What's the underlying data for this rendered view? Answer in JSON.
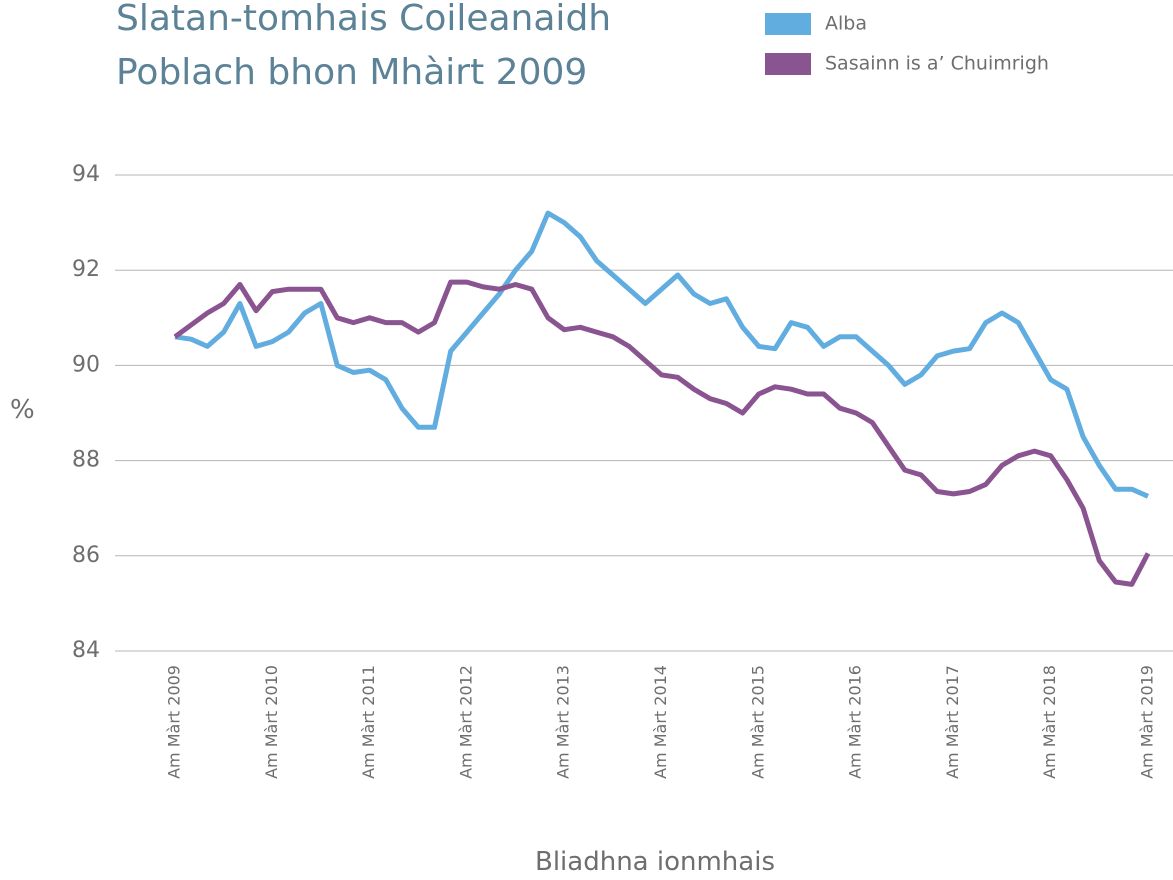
{
  "chart_data": {
    "type": "line",
    "title": [
      "Slatan-tomhais Coileanaidh",
      "Poblach bhon Mhàirt 2009"
    ],
    "y_label": "%",
    "x_label": "Bliadhna ionmhais",
    "categories": [
      "Am Màrt 2009",
      null,
      null,
      null,
      null,
      null,
      "Am Màrt 2010",
      null,
      null,
      null,
      null,
      null,
      "Am Màrt 2011",
      null,
      null,
      null,
      null,
      null,
      "Am Màrt 2012",
      null,
      null,
      null,
      null,
      null,
      "Am Màrt 2013",
      null,
      null,
      null,
      null,
      null,
      "Am Màrt 2014",
      null,
      null,
      null,
      null,
      null,
      "Am Màrt 2015",
      null,
      null,
      null,
      null,
      null,
      "Am Màrt 2016",
      null,
      null,
      null,
      null,
      null,
      "Am Màrt 2017",
      null,
      null,
      null,
      null,
      null,
      "Am Màrt 2018",
      null,
      null,
      null,
      null,
      null,
      "Am Màrt 2019"
    ],
    "series": [
      {
        "name": "Alba",
        "color": "#62ade0",
        "values": [
          90.6,
          90.55,
          90.4,
          90.7,
          91.3,
          90.4,
          90.5,
          90.7,
          91.1,
          91.3,
          90.0,
          89.85,
          89.9,
          89.7,
          89.1,
          88.7,
          88.7,
          90.3,
          90.7,
          91.1,
          91.5,
          92.0,
          92.4,
          93.2,
          93.0,
          92.7,
          92.2,
          91.9,
          91.6,
          91.3,
          91.6,
          91.9,
          91.5,
          91.3,
          91.4,
          90.8,
          90.4,
          90.35,
          90.9,
          90.8,
          90.4,
          90.6,
          90.6,
          90.3,
          90.0,
          89.6,
          89.8,
          90.2,
          90.3,
          90.35,
          90.9,
          91.1,
          90.9,
          90.3,
          89.7,
          89.5,
          88.5,
          87.9,
          87.4,
          87.4,
          87.25
        ]
      },
      {
        "name": "Sasainn is a’ Chuimrigh",
        "color": "#8a5491",
        "values": [
          90.6,
          90.85,
          91.1,
          91.3,
          91.7,
          91.15,
          91.55,
          91.6,
          91.6,
          91.6,
          91.0,
          90.9,
          91.0,
          90.9,
          90.9,
          90.7,
          90.9,
          91.75,
          91.75,
          91.65,
          91.6,
          91.7,
          91.6,
          91.0,
          90.75,
          90.8,
          90.7,
          90.6,
          90.4,
          90.1,
          89.8,
          89.75,
          89.5,
          89.3,
          89.2,
          89.0,
          89.4,
          89.55,
          89.5,
          89.4,
          89.4,
          89.1,
          89.0,
          88.8,
          88.3,
          87.8,
          87.7,
          87.35,
          87.3,
          87.35,
          87.5,
          87.9,
          88.1,
          88.2,
          88.1,
          87.6,
          87.0,
          85.9,
          85.45,
          85.4,
          86.05
        ]
      }
    ],
    "ylim": [
      84,
      94
    ],
    "yticks": [
      84,
      86,
      88,
      90,
      92,
      94
    ],
    "grid": true
  }
}
